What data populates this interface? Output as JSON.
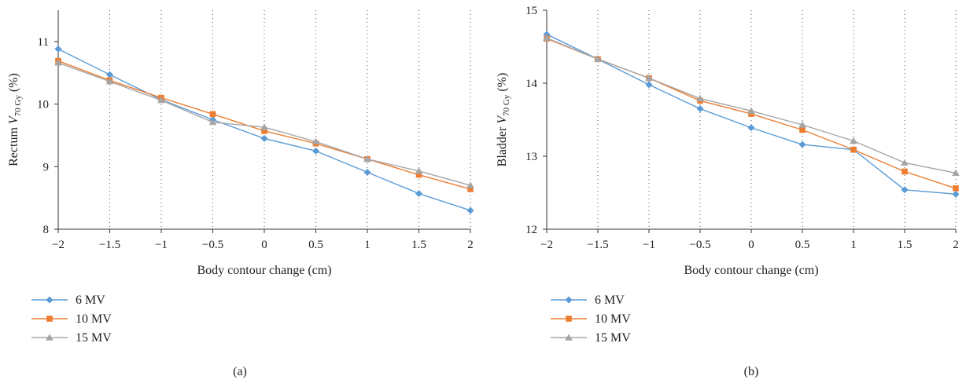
{
  "chart_data": [
    {
      "type": "line",
      "panel_label": "(a)",
      "xlabel": "Body contour change (cm)",
      "ylabel_prefix": "Rectum ",
      "ylabel_var": "V",
      "ylabel_sub": "70 Gy",
      "ylabel_suffix": " (%)",
      "x": [
        -2,
        -1.5,
        -1,
        -0.5,
        0,
        0.5,
        1,
        1.5,
        2
      ],
      "x_tick_labels": [
        "−2",
        "−1.5",
        "−1",
        "−0.5",
        "0",
        "0.5",
        "1",
        "1.5",
        "2"
      ],
      "xlim": [
        -2,
        2
      ],
      "ylim": [
        8,
        11.5
      ],
      "y_ticks": [
        8,
        9,
        10,
        11
      ],
      "y_tick_labels": [
        "8",
        "9",
        "10",
        "11"
      ],
      "grid": "vertical-dotted",
      "legend_position": "bottom-left",
      "series": [
        {
          "name": "6 MV",
          "marker": "diamond",
          "color": "#5b9bd5",
          "values": [
            10.88,
            10.47,
            10.07,
            9.75,
            9.45,
            9.25,
            8.91,
            8.57,
            8.3
          ]
        },
        {
          "name": "10 MV",
          "marker": "square",
          "color": "#ed7d31",
          "values": [
            10.69,
            10.38,
            10.1,
            9.84,
            9.57,
            9.37,
            9.12,
            8.87,
            8.64
          ]
        },
        {
          "name": "15 MV",
          "marker": "triangle",
          "color": "#a5a5a5",
          "values": [
            10.66,
            10.36,
            10.06,
            9.71,
            9.63,
            9.4,
            9.12,
            8.93,
            8.7
          ]
        }
      ]
    },
    {
      "type": "line",
      "panel_label": "(b)",
      "xlabel": "Body contour change (cm)",
      "ylabel_prefix": "Bladder ",
      "ylabel_var": "V",
      "ylabel_sub": "70 Gy",
      "ylabel_suffix": " (%)",
      "x": [
        -2,
        -1.5,
        -1,
        -0.5,
        0,
        0.5,
        1,
        1.5,
        2
      ],
      "x_tick_labels": [
        "−2",
        "−1.5",
        "−1",
        "−0.5",
        "0",
        "0.5",
        "1",
        "1.5",
        "2"
      ],
      "xlim": [
        -2,
        2
      ],
      "ylim": [
        12,
        15
      ],
      "y_ticks": [
        12,
        13,
        14,
        15
      ],
      "y_tick_labels": [
        "12",
        "13",
        "14",
        "15"
      ],
      "grid": "vertical-dotted",
      "legend_position": "bottom-left",
      "series": [
        {
          "name": "6 MV",
          "marker": "diamond",
          "color": "#5b9bd5",
          "values": [
            14.67,
            14.33,
            13.98,
            13.65,
            13.39,
            13.16,
            13.09,
            12.54,
            12.48
          ]
        },
        {
          "name": "10 MV",
          "marker": "square",
          "color": "#ed7d31",
          "values": [
            14.61,
            14.33,
            14.07,
            13.76,
            13.58,
            13.36,
            13.09,
            12.79,
            12.56
          ]
        },
        {
          "name": "15 MV",
          "marker": "triangle",
          "color": "#a5a5a5",
          "values": [
            14.62,
            14.33,
            14.07,
            13.79,
            13.62,
            13.43,
            13.21,
            12.91,
            12.77
          ]
        }
      ]
    }
  ]
}
